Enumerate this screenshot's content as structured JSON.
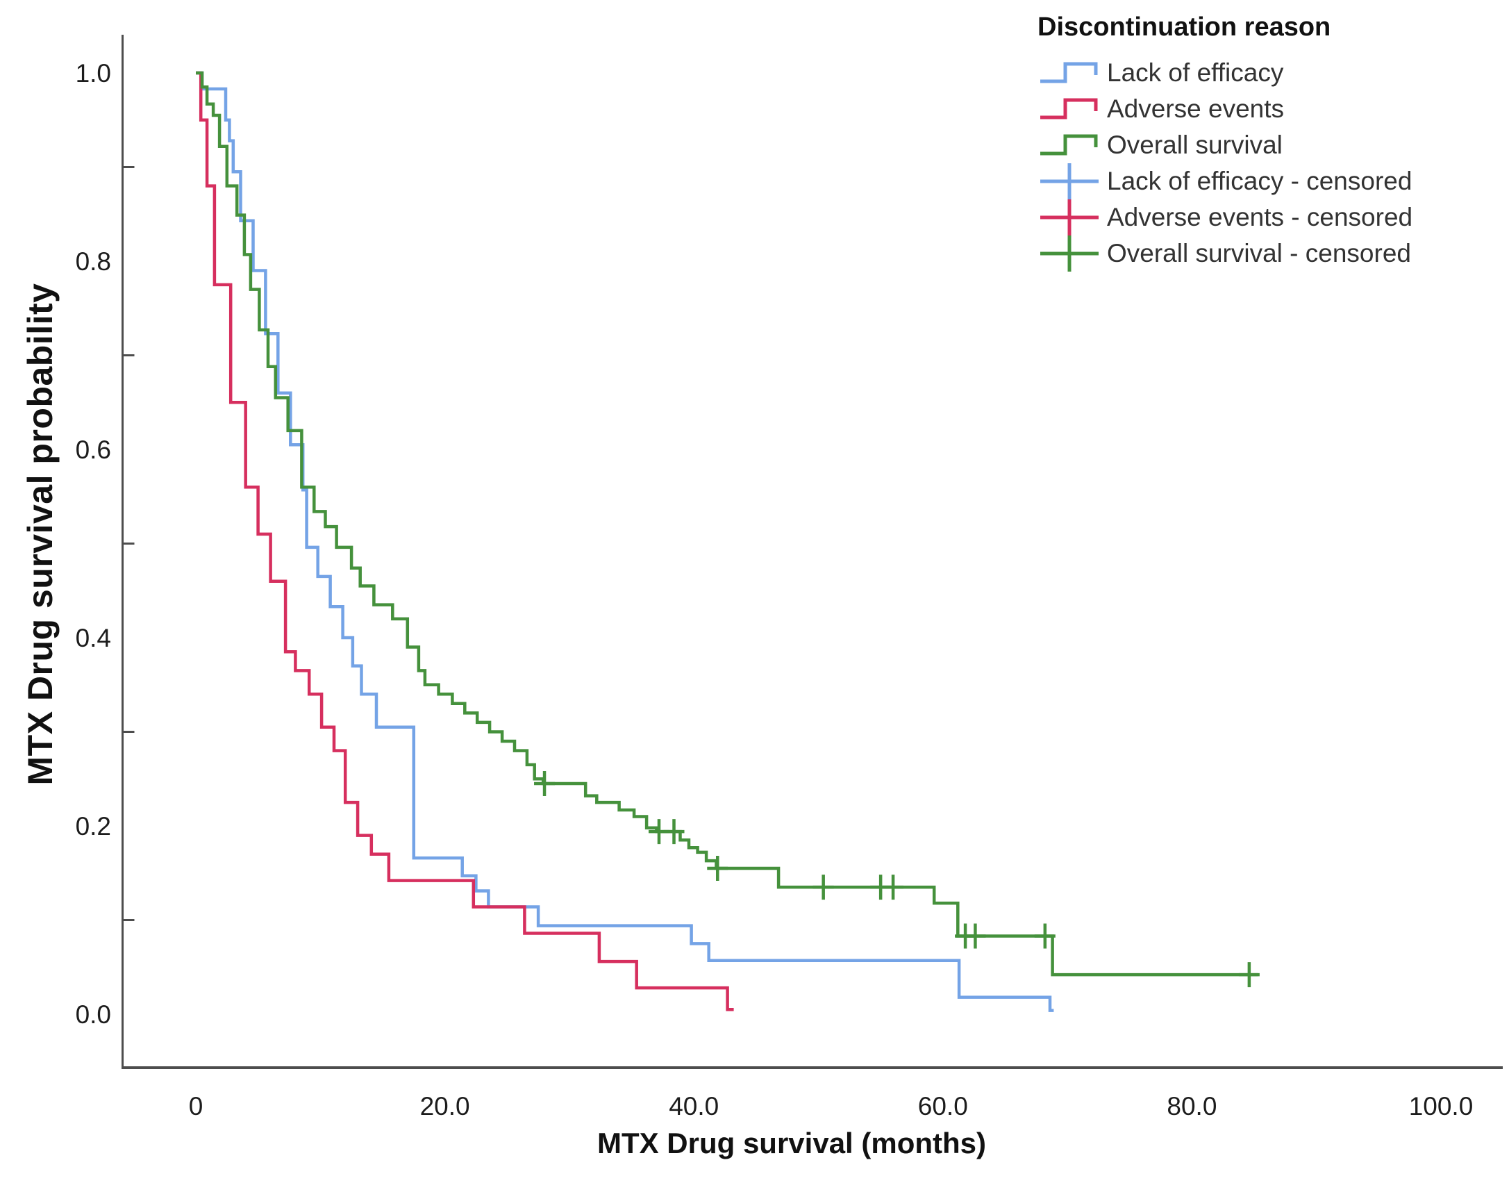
{
  "chart_data": {
    "type": "line",
    "subtype": "kaplan-meier-step-survival",
    "title": "",
    "xlabel": "MTX Drug survival (months)",
    "ylabel": "MTX Drug survival probability",
    "xlim": [
      0,
      100
    ],
    "ylim": [
      0.0,
      1.0
    ],
    "grid": false,
    "legend_position": "top-right",
    "legend_title": "Discontinuation reason",
    "x_ticks": [
      {
        "value": 0,
        "label": "0"
      },
      {
        "value": 20,
        "label": "20.0"
      },
      {
        "value": 40,
        "label": "40.0"
      },
      {
        "value": 60,
        "label": "60.0"
      },
      {
        "value": 80,
        "label": "80.0"
      },
      {
        "value": 100,
        "label": "100.0"
      }
    ],
    "y_ticks": [
      {
        "value": 1.0,
        "label": "1.0"
      },
      {
        "value": 0.8,
        "label": "0.8"
      },
      {
        "value": 0.6,
        "label": "0.6"
      },
      {
        "value": 0.4,
        "label": "0.4"
      },
      {
        "value": 0.2,
        "label": "0.2"
      },
      {
        "value": 0.0,
        "label": "0.0"
      }
    ],
    "y_minor_ticks": [
      0.9,
      0.7,
      0.5,
      0.3,
      0.1
    ],
    "series": [
      {
        "id": "lack-of-efficacy",
        "name": "Lack of efficacy",
        "color": "#74A3E6",
        "points": [
          [
            0,
            1.0
          ],
          [
            0.5,
            0.983
          ],
          [
            2.4,
            0.95
          ],
          [
            2.7,
            0.928
          ],
          [
            3.0,
            0.895
          ],
          [
            3.6,
            0.843
          ],
          [
            4.6,
            0.79
          ],
          [
            5.6,
            0.723
          ],
          [
            6.6,
            0.66
          ],
          [
            7.6,
            0.605
          ],
          [
            8.6,
            0.557
          ],
          [
            8.9,
            0.496
          ],
          [
            9.8,
            0.465
          ],
          [
            10.8,
            0.433
          ],
          [
            11.8,
            0.4
          ],
          [
            12.6,
            0.37
          ],
          [
            13.3,
            0.34
          ],
          [
            14.5,
            0.305
          ],
          [
            17.5,
            0.166
          ],
          [
            21.4,
            0.147
          ],
          [
            22.5,
            0.131
          ],
          [
            23.5,
            0.114
          ],
          [
            27.5,
            0.094
          ],
          [
            39.8,
            0.075
          ],
          [
            41.2,
            0.057
          ],
          [
            61.3,
            0.018
          ],
          [
            68.6,
            0.004
          ]
        ],
        "end_t": 68.9,
        "censored": []
      },
      {
        "id": "adverse-events",
        "name": "Adverse events",
        "color": "#D62F5E",
        "points": [
          [
            0,
            1.0
          ],
          [
            0.4,
            0.95
          ],
          [
            0.9,
            0.88
          ],
          [
            1.5,
            0.775
          ],
          [
            2.8,
            0.65
          ],
          [
            4.0,
            0.56
          ],
          [
            5.0,
            0.51
          ],
          [
            6.0,
            0.46
          ],
          [
            7.2,
            0.385
          ],
          [
            8.0,
            0.365
          ],
          [
            9.1,
            0.34
          ],
          [
            10.1,
            0.305
          ],
          [
            11.1,
            0.28
          ],
          [
            12.0,
            0.225
          ],
          [
            13.0,
            0.19
          ],
          [
            14.1,
            0.17
          ],
          [
            15.5,
            0.142
          ],
          [
            22.3,
            0.114
          ],
          [
            26.4,
            0.086
          ],
          [
            32.4,
            0.056
          ],
          [
            35.4,
            0.028
          ],
          [
            42.7,
            0.005
          ]
        ],
        "end_t": 43.2,
        "censored": []
      },
      {
        "id": "overall-survival",
        "name": "Overall survival",
        "color": "#45913C",
        "points": [
          [
            0,
            1.0
          ],
          [
            0.5,
            0.985
          ],
          [
            0.9,
            0.967
          ],
          [
            1.4,
            0.955
          ],
          [
            1.9,
            0.922
          ],
          [
            2.5,
            0.88
          ],
          [
            3.3,
            0.849
          ],
          [
            3.9,
            0.807
          ],
          [
            4.4,
            0.77
          ],
          [
            5.1,
            0.727
          ],
          [
            5.8,
            0.688
          ],
          [
            6.4,
            0.655
          ],
          [
            7.4,
            0.62
          ],
          [
            8.5,
            0.56
          ],
          [
            9.5,
            0.534
          ],
          [
            10.4,
            0.518
          ],
          [
            11.3,
            0.496
          ],
          [
            12.5,
            0.474
          ],
          [
            13.2,
            0.455
          ],
          [
            14.3,
            0.435
          ],
          [
            15.8,
            0.42
          ],
          [
            17.0,
            0.39
          ],
          [
            17.9,
            0.365
          ],
          [
            18.4,
            0.35
          ],
          [
            19.5,
            0.34
          ],
          [
            20.6,
            0.33
          ],
          [
            21.6,
            0.32
          ],
          [
            22.6,
            0.31
          ],
          [
            23.6,
            0.3
          ],
          [
            24.6,
            0.29
          ],
          [
            25.6,
            0.28
          ],
          [
            26.6,
            0.265
          ],
          [
            27.2,
            0.25
          ],
          [
            27.9,
            0.245
          ],
          [
            31.3,
            0.232
          ],
          [
            32.2,
            0.225
          ],
          [
            34.0,
            0.217
          ],
          [
            35.2,
            0.21
          ],
          [
            36.2,
            0.198
          ],
          [
            37.0,
            0.194
          ],
          [
            38.9,
            0.185
          ],
          [
            39.6,
            0.177
          ],
          [
            40.3,
            0.172
          ],
          [
            41.0,
            0.163
          ],
          [
            41.8,
            0.155
          ],
          [
            46.8,
            0.135
          ],
          [
            59.3,
            0.118
          ],
          [
            61.2,
            0.083
          ],
          [
            68.8,
            0.042
          ]
        ],
        "end_t": 85.3,
        "censored": [
          [
            28.0,
            0.245
          ],
          [
            37.2,
            0.194
          ],
          [
            38.4,
            0.194
          ],
          [
            41.9,
            0.155
          ],
          [
            50.4,
            0.135
          ],
          [
            55.0,
            0.135
          ],
          [
            56.0,
            0.135
          ],
          [
            61.8,
            0.083
          ],
          [
            62.6,
            0.083
          ],
          [
            68.2,
            0.083
          ],
          [
            84.6,
            0.042
          ]
        ]
      }
    ],
    "legend_items": [
      {
        "label": "Lack of efficacy",
        "color": "#74A3E6",
        "glyph": "step"
      },
      {
        "label": "Adverse events",
        "color": "#D62F5E",
        "glyph": "step"
      },
      {
        "label": "Overall survival",
        "color": "#45913C",
        "glyph": "step"
      },
      {
        "label": "Lack of efficacy - censored",
        "color": "#74A3E6",
        "glyph": "cross"
      },
      {
        "label": "Adverse events - censored",
        "color": "#D62F5E",
        "glyph": "cross"
      },
      {
        "label": "Overall survival - censored",
        "color": "#45913C",
        "glyph": "cross"
      }
    ]
  },
  "colors": {
    "axis": "#4d4d4d",
    "tick_text": "#1c1c1c",
    "legend_text": "#333333",
    "background": "#ffffff"
  }
}
